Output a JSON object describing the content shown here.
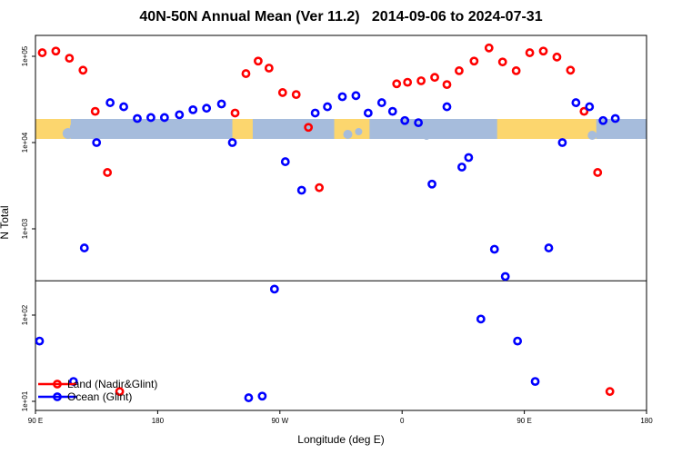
{
  "chart_data": {
    "type": "scatter",
    "title": "40N-50N Annual Mean (Ver 11.2)   2014-09-06 to 2024-07-31",
    "xlabel": "Longitude (deg E)",
    "ylabel": "N Total",
    "y_scale": "log",
    "xlim": [
      90,
      540
    ],
    "x_ticks": [
      {
        "value": 90,
        "label": "90 E"
      },
      {
        "value": 180,
        "label": "180"
      },
      {
        "value": 270,
        "label": "90 W"
      },
      {
        "value": 360,
        "label": "0"
      },
      {
        "value": 450,
        "label": "90 E"
      },
      {
        "value": 540,
        "label": "180"
      }
    ],
    "y_ticks": [
      {
        "value": 10,
        "label": "1e+01"
      },
      {
        "value": 100,
        "label": "1e+02"
      },
      {
        "value": 1000,
        "label": "1e+03"
      },
      {
        "value": 10000,
        "label": "1e+04"
      },
      {
        "value": 100000,
        "label": "1e+05"
      }
    ],
    "reference_line": 250,
    "latitude_band": [
      40,
      50
    ],
    "legend_position": "bottom-left",
    "series": [
      {
        "name": "Land (Nadir&Glint)",
        "color": "#ff0000",
        "points": [
          [
            95,
            110000
          ],
          [
            105,
            115000
          ],
          [
            115,
            95000
          ],
          [
            125,
            69000
          ],
          [
            134,
            23000
          ],
          [
            143,
            4500
          ],
          [
            152,
            13
          ],
          [
            237,
            22000
          ],
          [
            245,
            63000
          ],
          [
            254,
            88000
          ],
          [
            262,
            73000
          ],
          [
            272,
            38000
          ],
          [
            282,
            36000
          ],
          [
            291,
            15000
          ],
          [
            299,
            3000
          ],
          [
            356,
            48000
          ],
          [
            364,
            50000
          ],
          [
            374,
            52000
          ],
          [
            384,
            57000
          ],
          [
            393,
            47000
          ],
          [
            402,
            68000
          ],
          [
            413,
            88000
          ],
          [
            424,
            125000
          ],
          [
            434,
            86000
          ],
          [
            444,
            68000
          ],
          [
            454,
            110000
          ],
          [
            464,
            115000
          ],
          [
            474,
            98000
          ],
          [
            484,
            69000
          ],
          [
            494,
            23000
          ],
          [
            504,
            4500
          ],
          [
            513,
            13
          ]
        ]
      },
      {
        "name": "Ocean (Glint)",
        "color": "#0000ff",
        "points": [
          [
            93,
            50
          ],
          [
            118,
            17
          ],
          [
            126,
            600
          ],
          [
            135,
            10000
          ],
          [
            145,
            29000
          ],
          [
            155,
            26000
          ],
          [
            165,
            19000
          ],
          [
            175,
            19500
          ],
          [
            185,
            19500
          ],
          [
            196,
            21000
          ],
          [
            206,
            24000
          ],
          [
            216,
            25000
          ],
          [
            227,
            28000
          ],
          [
            235,
            10000
          ],
          [
            247,
            11
          ],
          [
            257,
            11.5
          ],
          [
            266,
            200
          ],
          [
            274,
            6000
          ],
          [
            286,
            2800
          ],
          [
            296,
            22000
          ],
          [
            305,
            26000
          ],
          [
            316,
            34000
          ],
          [
            326,
            35000
          ],
          [
            335,
            22000
          ],
          [
            345,
            29000
          ],
          [
            353,
            23000
          ],
          [
            362,
            18000
          ],
          [
            372,
            17000
          ],
          [
            382,
            3300
          ],
          [
            393,
            26000
          ],
          [
            404,
            5200
          ],
          [
            409,
            6700
          ],
          [
            418,
            90
          ],
          [
            428,
            580
          ],
          [
            436,
            280
          ],
          [
            445,
            50
          ],
          [
            458,
            17
          ],
          [
            468,
            600
          ],
          [
            478,
            10000
          ],
          [
            488,
            29000
          ],
          [
            498,
            26000
          ],
          [
            508,
            18000
          ],
          [
            517,
            19000
          ]
        ]
      }
    ]
  },
  "legend": [
    {
      "label": "Land (Nadir&Glint)",
      "color": "#ff0000"
    },
    {
      "label": "Ocean (Glint)",
      "color": "#0000ff"
    }
  ]
}
